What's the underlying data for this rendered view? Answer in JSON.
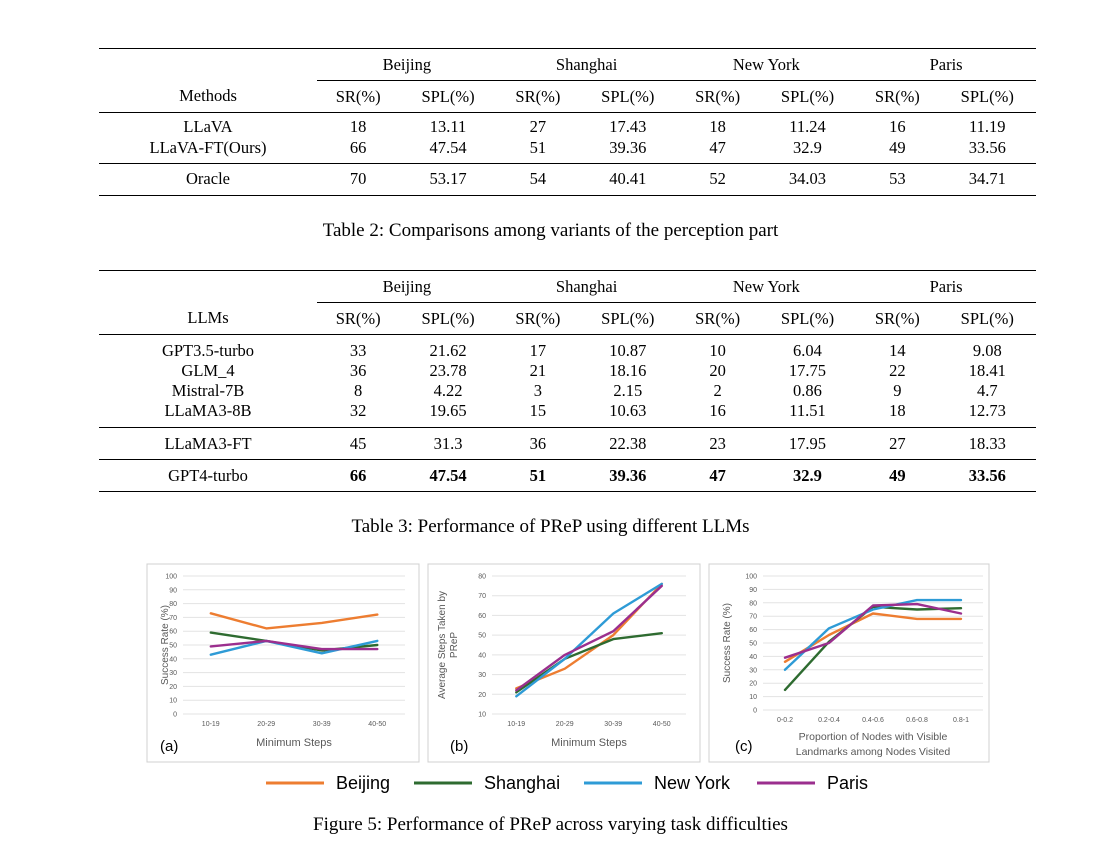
{
  "table2": {
    "caption": "Table 2: Comparisons among variants of the perception part",
    "corner_label": "Methods",
    "cities": [
      "Beijing",
      "Shanghai",
      "New York",
      "Paris"
    ],
    "metrics": [
      "SR(%)",
      "SPL(%)",
      "SR(%)",
      "SPL(%)",
      "SR(%)",
      "SPL(%)",
      "SR(%)",
      "SPL(%)"
    ],
    "rows": [
      {
        "name": "LLaVA",
        "values": [
          "18",
          "13.11",
          "27",
          "17.43",
          "18",
          "11.24",
          "16",
          "11.19"
        ]
      },
      {
        "name": "LLaVA-FT(Ours)",
        "values": [
          "66",
          "47.54",
          "51",
          "39.36",
          "47",
          "32.9",
          "49",
          "33.56"
        ]
      },
      {
        "name": "Oracle",
        "values": [
          "70",
          "53.17",
          "54",
          "40.41",
          "52",
          "34.03",
          "53",
          "34.71"
        ]
      }
    ]
  },
  "table3": {
    "caption": "Table 3: Performance of PReP using different LLMs",
    "corner_label": "LLMs",
    "cities": [
      "Beijing",
      "Shanghai",
      "New York",
      "Paris"
    ],
    "metrics": [
      "SR(%)",
      "SPL(%)",
      "SR(%)",
      "SPL(%)",
      "SR(%)",
      "SPL(%)",
      "SR(%)",
      "SPL(%)"
    ],
    "rows": [
      {
        "name": "GPT3.5-turbo",
        "values": [
          "33",
          "21.62",
          "17",
          "10.87",
          "10",
          "6.04",
          "14",
          "9.08"
        ]
      },
      {
        "name": "GLM_4",
        "values": [
          "36",
          "23.78",
          "21",
          "18.16",
          "20",
          "17.75",
          "22",
          "18.41"
        ]
      },
      {
        "name": "Mistral-7B",
        "values": [
          "8",
          "4.22",
          "3",
          "2.15",
          "2",
          "0.86",
          "9",
          "4.7"
        ]
      },
      {
        "name": "LLaMA3-8B",
        "values": [
          "32",
          "19.65",
          "15",
          "10.63",
          "16",
          "11.51",
          "18",
          "12.73"
        ]
      },
      {
        "name": "LLaMA3-FT",
        "values": [
          "45",
          "31.3",
          "36",
          "22.38",
          "23",
          "17.95",
          "27",
          "18.33"
        ]
      },
      {
        "name": "GPT4-turbo",
        "values": [
          "66",
          "47.54",
          "51",
          "39.36",
          "47",
          "32.9",
          "49",
          "33.56"
        ]
      }
    ]
  },
  "figure5": {
    "caption": "Figure 5: Performance of PReP across varying task difficulties",
    "legend": [
      {
        "name": "Beijing",
        "color": "#ED7D31"
      },
      {
        "name": "Shanghai",
        "color": "#2E6B30"
      },
      {
        "name": "New York",
        "color": "#2E9BD6"
      },
      {
        "name": "Paris",
        "color": "#9B2F8E"
      }
    ]
  },
  "chart_data": [
    {
      "type": "line",
      "panel_label": "(a)",
      "xlabel": "Minimum Steps",
      "ylabel": "Success Rate (%)",
      "categories": [
        "10-19",
        "20-29",
        "30-39",
        "40-50"
      ],
      "yticks": [
        "0",
        "10",
        "20",
        "30",
        "40",
        "50",
        "60",
        "70",
        "80",
        "90",
        "100"
      ],
      "ylim": [
        0,
        100
      ],
      "grid": true,
      "series": [
        {
          "name": "Beijing",
          "values": [
            73,
            62,
            66,
            72
          ]
        },
        {
          "name": "Shanghai",
          "values": [
            59,
            53,
            46,
            50
          ]
        },
        {
          "name": "New York",
          "values": [
            43,
            53,
            44,
            53
          ]
        },
        {
          "name": "Paris",
          "values": [
            49,
            53,
            47,
            47
          ]
        }
      ]
    },
    {
      "type": "line",
      "panel_label": "(b)",
      "xlabel": "Minimum Steps",
      "ylabel": "Average Steps Taken by PReP",
      "categories": [
        "10-19",
        "20-29",
        "30-39",
        "40-50"
      ],
      "yticks": [
        "10",
        "20",
        "30",
        "40",
        "50",
        "60",
        "70",
        "80"
      ],
      "ylim": [
        10,
        80
      ],
      "grid": true,
      "series": [
        {
          "name": "Beijing",
          "values": [
            23,
            33,
            50,
            76
          ]
        },
        {
          "name": "Shanghai",
          "values": [
            21,
            38,
            48,
            51
          ]
        },
        {
          "name": "New York",
          "values": [
            19,
            38,
            61,
            76
          ]
        },
        {
          "name": "Paris",
          "values": [
            22,
            40,
            52,
            75
          ]
        }
      ]
    },
    {
      "type": "line",
      "panel_label": "(c)",
      "xlabel": "Proportion of Nodes with Visible Landmarks among Nodes Visited",
      "ylabel": "Success Rate (%)",
      "categories": [
        "0-0.2",
        "0.2-0.4",
        "0.4-0.6",
        "0.6-0.8",
        "0.8-1"
      ],
      "yticks": [
        "0",
        "10",
        "20",
        "30",
        "40",
        "50",
        "60",
        "70",
        "80",
        "90",
        "100"
      ],
      "ylim": [
        0,
        100
      ],
      "grid": true,
      "series": [
        {
          "name": "Beijing",
          "values": [
            36,
            56,
            72,
            68,
            68
          ]
        },
        {
          "name": "Shanghai",
          "values": [
            15,
            51,
            77,
            75,
            76
          ]
        },
        {
          "name": "New York",
          "values": [
            30,
            61,
            75,
            82,
            82
          ]
        },
        {
          "name": "Paris",
          "values": [
            39,
            50,
            78,
            79,
            72
          ]
        }
      ]
    }
  ]
}
